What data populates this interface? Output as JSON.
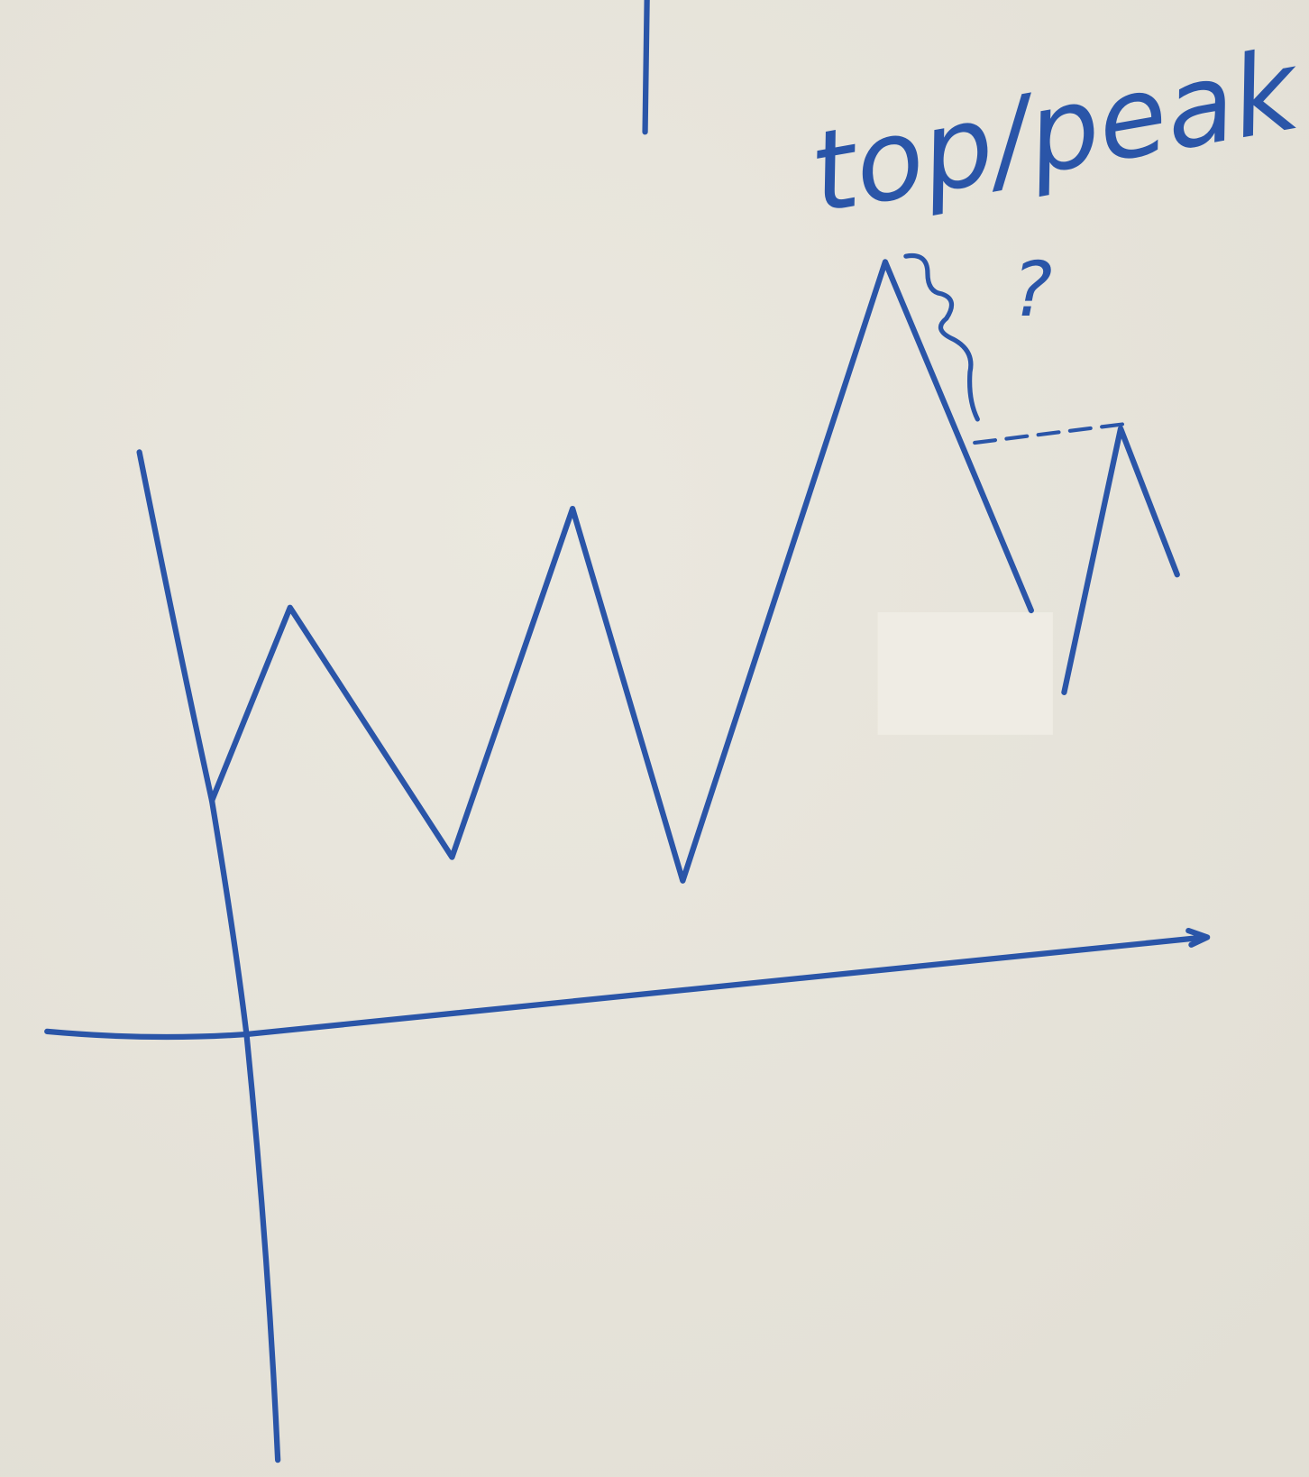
{
  "annotations": {
    "label": "top/peak",
    "question": "?"
  }
}
